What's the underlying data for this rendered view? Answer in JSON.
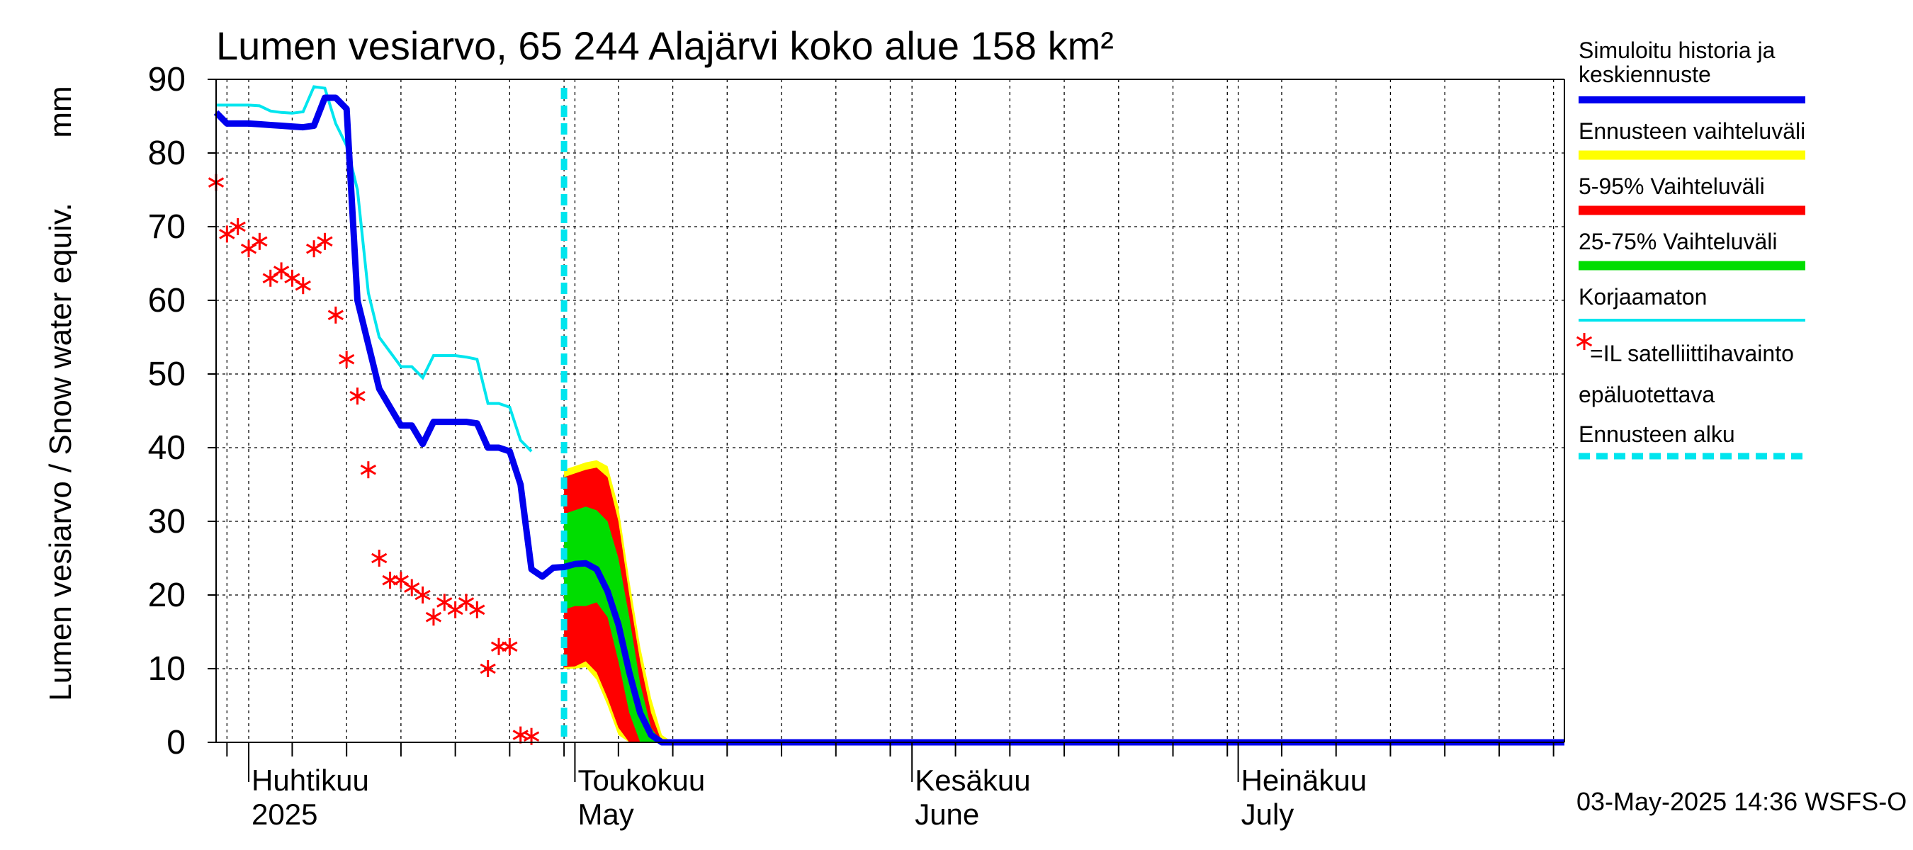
{
  "chart_data": {
    "type": "area",
    "title": "Lumen vesiarvo, 65 244 Alajärvi koko alue 158 km²",
    "ylabel": "Lumen vesiarvo / Snow water equiv.",
    "yunit": "mm",
    "ylim": [
      0,
      90
    ],
    "yticks": [
      0,
      10,
      20,
      30,
      40,
      50,
      60,
      70,
      80,
      90
    ],
    "xlim": [
      "2025-03-29",
      "2025-07-31"
    ],
    "grid": true,
    "legend_position": "right",
    "month_labels": [
      {
        "date": "2025-04-01",
        "fi": "Huhtikuu",
        "en": "2025"
      },
      {
        "date": "2025-05-01",
        "fi": "Toukokuu",
        "en": "May"
      },
      {
        "date": "2025-06-01",
        "fi": "Kesäkuu",
        "en": "June"
      },
      {
        "date": "2025-07-01",
        "fi": "Heinäkuu",
        "en": "July"
      }
    ],
    "forecast_start": "2025-04-30",
    "series": [
      {
        "name": "Simuloitu historia ja keskiennuste",
        "color": "#0000ee",
        "x": [
          "2025-03-29",
          "2025-03-30",
          "2025-03-31",
          "2025-04-01",
          "2025-04-02",
          "2025-04-03",
          "2025-04-04",
          "2025-04-05",
          "2025-04-06",
          "2025-04-07",
          "2025-04-08",
          "2025-04-09",
          "2025-04-10",
          "2025-04-11",
          "2025-04-12",
          "2025-04-13",
          "2025-04-14",
          "2025-04-15",
          "2025-04-16",
          "2025-04-17",
          "2025-04-18",
          "2025-04-19",
          "2025-04-20",
          "2025-04-21",
          "2025-04-22",
          "2025-04-23",
          "2025-04-24",
          "2025-04-25",
          "2025-04-26",
          "2025-04-27",
          "2025-04-28",
          "2025-04-29",
          "2025-04-30",
          "2025-05-01",
          "2025-05-02",
          "2025-05-03",
          "2025-05-04",
          "2025-05-05",
          "2025-05-06",
          "2025-05-07",
          "2025-05-08",
          "2025-05-09",
          "2025-05-10",
          "2025-05-11",
          "2025-07-31"
        ],
        "values": [
          85.5,
          84,
          84,
          84,
          83.9,
          83.8,
          83.7,
          83.6,
          83.5,
          83.7,
          87.5,
          87.5,
          86,
          60,
          54,
          48,
          45.5,
          43,
          43,
          40.5,
          43.5,
          43.5,
          43.5,
          43.5,
          43.3,
          40,
          40,
          39.5,
          35,
          23.5,
          22.5,
          23.7,
          23.8,
          24.2,
          24.3,
          23.5,
          20.5,
          16,
          9.5,
          4,
          1,
          0,
          0,
          0,
          0
        ]
      },
      {
        "name": "Korjaamaton",
        "color": "#00e5ee",
        "x": [
          "2025-03-29",
          "2025-03-30",
          "2025-03-31",
          "2025-04-01",
          "2025-04-02",
          "2025-04-03",
          "2025-04-04",
          "2025-04-05",
          "2025-04-06",
          "2025-04-07",
          "2025-04-08",
          "2025-04-09",
          "2025-04-10",
          "2025-04-11",
          "2025-04-12",
          "2025-04-13",
          "2025-04-14",
          "2025-04-15",
          "2025-04-16",
          "2025-04-17",
          "2025-04-18",
          "2025-04-19",
          "2025-04-20",
          "2025-04-21",
          "2025-04-22",
          "2025-04-23",
          "2025-04-24",
          "2025-04-25",
          "2025-04-26",
          "2025-04-27"
        ],
        "values": [
          86.5,
          86.5,
          86.5,
          86.5,
          86.4,
          85.7,
          85.5,
          85.4,
          85.6,
          89,
          88.8,
          84,
          81,
          75,
          61,
          55,
          53,
          51,
          51,
          49.5,
          52.5,
          52.5,
          52.5,
          52.3,
          52,
          46,
          46,
          45.5,
          41,
          39.5
        ]
      },
      {
        "name": "Ennusteen vaihteluväli",
        "color": "#ffff00",
        "type": "band",
        "x": [
          "2025-04-30",
          "2025-05-01",
          "2025-05-02",
          "2025-05-03",
          "2025-05-04",
          "2025-05-05",
          "2025-05-06",
          "2025-05-07",
          "2025-05-08",
          "2025-05-09",
          "2025-05-10"
        ],
        "upper": [
          37,
          37.5,
          38,
          38.3,
          37.5,
          32,
          22,
          13,
          6,
          1,
          0
        ],
        "lower": [
          10,
          10,
          10.2,
          8.5,
          5,
          1,
          0,
          0,
          0,
          0,
          0
        ]
      },
      {
        "name": "5-95% Vaihteluväli",
        "color": "#ff0000",
        "type": "band",
        "x": [
          "2025-04-30",
          "2025-05-01",
          "2025-05-02",
          "2025-05-03",
          "2025-05-04",
          "2025-05-05",
          "2025-05-06",
          "2025-05-07",
          "2025-05-08",
          "2025-05-09",
          "2025-05-10"
        ],
        "upper": [
          36,
          36.5,
          37,
          37.3,
          36,
          30,
          20,
          11,
          4,
          0,
          0
        ],
        "lower": [
          10.2,
          10.3,
          11,
          9.5,
          6,
          2,
          0,
          0,
          0,
          0,
          0
        ]
      },
      {
        "name": "25-75% Vaihteluväli",
        "color": "#00dd00",
        "type": "band",
        "x": [
          "2025-04-30",
          "2025-05-01",
          "2025-05-02",
          "2025-05-03",
          "2025-05-04",
          "2025-05-05",
          "2025-05-06",
          "2025-05-07",
          "2025-05-08",
          "2025-05-09"
        ],
        "upper": [
          31,
          31.5,
          32,
          31.5,
          30,
          25,
          17,
          8,
          2,
          0
        ],
        "lower": [
          18,
          18.5,
          18.5,
          19,
          17,
          11,
          4,
          0,
          0,
          0
        ]
      },
      {
        "name": "=IL satelliittihavainto epäluotettava",
        "color": "#ff0000",
        "type": "scatter",
        "x": [
          "2025-03-29",
          "2025-03-30",
          "2025-03-31",
          "2025-04-01",
          "2025-04-02",
          "2025-04-03",
          "2025-04-04",
          "2025-04-05",
          "2025-04-06",
          "2025-04-07",
          "2025-04-08",
          "2025-04-09",
          "2025-04-10",
          "2025-04-11",
          "2025-04-12",
          "2025-04-13",
          "2025-04-14",
          "2025-04-15",
          "2025-04-16",
          "2025-04-17",
          "2025-04-18",
          "2025-04-19",
          "2025-04-20",
          "2025-04-21",
          "2025-04-22",
          "2025-04-23",
          "2025-04-24",
          "2025-04-25",
          "2025-04-26",
          "2025-04-27"
        ],
        "values": [
          76,
          69,
          70,
          67,
          68,
          63,
          64,
          63,
          62,
          67,
          68,
          58,
          52,
          47,
          37,
          25,
          22,
          22,
          21,
          20,
          17,
          19,
          18,
          19,
          18,
          10,
          13,
          13,
          1,
          0.8
        ]
      }
    ],
    "legend": [
      {
        "label": "Simuloitu historia ja keskiennuste",
        "color": "#0000ee",
        "style": "thick"
      },
      {
        "label": "Ennusteen vaihteluväli",
        "color": "#ffff00",
        "style": "thick"
      },
      {
        "label": "5-95% Vaihteluväli",
        "color": "#ff0000",
        "style": "thick"
      },
      {
        "label": "25-75% Vaihteluväli",
        "color": "#00dd00",
        "style": "thick"
      },
      {
        "label": "Korjaamaton",
        "color": "#00e5ee",
        "style": "thin"
      },
      {
        "label": "=IL satelliittihavainto epäluotettava",
        "color": "#ff0000",
        "style": "star"
      },
      {
        "label": "Ennusteen alku",
        "color": "#00e5ee",
        "style": "dashed"
      }
    ],
    "timestamp": "03-May-2025 14:36 WSFS-O"
  }
}
